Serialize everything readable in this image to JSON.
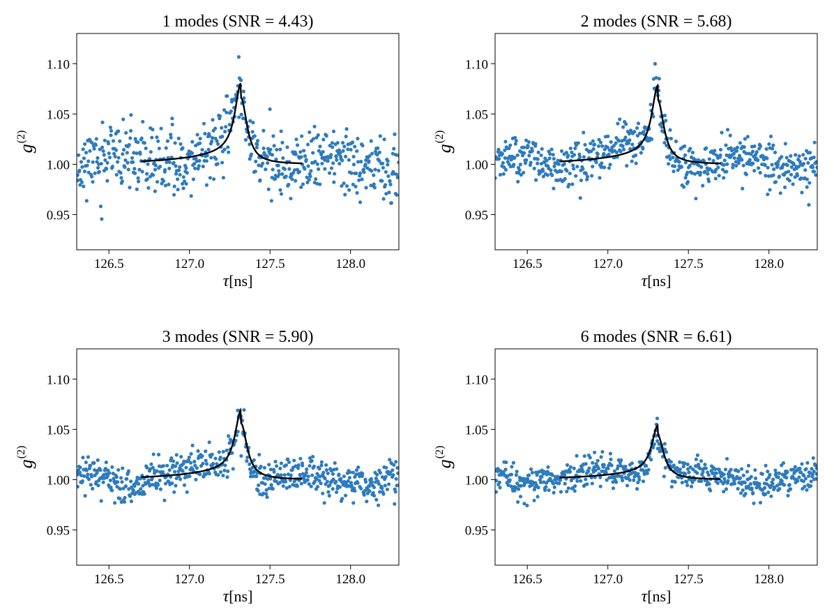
{
  "figure": {
    "point_color": "#2e7bbd",
    "fit_color": "#000000"
  },
  "chart_data": [
    {
      "type": "scatter",
      "title": "1 modes (SNR = 4.43)",
      "xlabel_symbol": "τ",
      "xlabel_unit": "[ns]",
      "ylabel_base": "g",
      "ylabel_sup": "(2)",
      "xlim": [
        126.3,
        128.3
      ],
      "ylim": [
        0.915,
        1.13
      ],
      "xticks": [
        126.5,
        127.0,
        127.5,
        128.0
      ],
      "xtick_labels": [
        "126.5",
        "127.0",
        "127.5",
        "128.0"
      ],
      "yticks": [
        0.95,
        1.0,
        1.05,
        1.1
      ],
      "ytick_labels": [
        "0.95",
        "1.00",
        "1.05",
        "1.10"
      ],
      "peak": {
        "center": 127.32,
        "height": 0.066,
        "width": 0.045,
        "tail_amp": 0.015,
        "tail_decay": 0.35
      },
      "scatter": {
        "n_points": 600,
        "noise_sd": 0.016,
        "seed": 11
      },
      "fit_range": [
        126.7,
        127.7
      ]
    },
    {
      "type": "scatter",
      "title": "2 modes (SNR = 5.68)",
      "xlabel_symbol": "τ",
      "xlabel_unit": "[ns]",
      "ylabel_base": "g",
      "ylabel_sup": "(2)",
      "xlim": [
        126.3,
        128.3
      ],
      "ylim": [
        0.915,
        1.13
      ],
      "xticks": [
        126.5,
        127.0,
        127.5,
        128.0
      ],
      "xtick_labels": [
        "126.5",
        "127.0",
        "127.5",
        "128.0"
      ],
      "yticks": [
        0.95,
        1.0,
        1.05,
        1.1
      ],
      "ytick_labels": [
        "0.95",
        "1.00",
        "1.05",
        "1.10"
      ],
      "peak": {
        "center": 127.31,
        "height": 0.064,
        "width": 0.045,
        "tail_amp": 0.014,
        "tail_decay": 0.35
      },
      "scatter": {
        "n_points": 600,
        "noise_sd": 0.011,
        "seed": 23
      },
      "fit_range": [
        126.7,
        127.7
      ]
    },
    {
      "type": "scatter",
      "title": "3 modes (SNR = 5.90)",
      "xlabel_symbol": "τ",
      "xlabel_unit": "[ns]",
      "ylabel_base": "g",
      "ylabel_sup": "(2)",
      "xlim": [
        126.3,
        128.3
      ],
      "ylim": [
        0.915,
        1.13
      ],
      "xticks": [
        126.5,
        127.0,
        127.5,
        128.0
      ],
      "xtick_labels": [
        "126.5",
        "127.0",
        "127.5",
        "128.0"
      ],
      "yticks": [
        0.95,
        1.0,
        1.05,
        1.1
      ],
      "ytick_labels": [
        "0.95",
        "1.00",
        "1.05",
        "1.10"
      ],
      "peak": {
        "center": 127.32,
        "height": 0.056,
        "width": 0.045,
        "tail_amp": 0.013,
        "tail_decay": 0.35
      },
      "scatter": {
        "n_points": 600,
        "noise_sd": 0.009,
        "seed": 37
      },
      "fit_range": [
        126.7,
        127.7
      ]
    },
    {
      "type": "scatter",
      "title": "6 modes (SNR = 6.61)",
      "xlabel_symbol": "τ",
      "xlabel_unit": "[ns]",
      "ylabel_base": "g",
      "ylabel_sup": "(2)",
      "xlim": [
        126.3,
        128.3
      ],
      "ylim": [
        0.915,
        1.13
      ],
      "xticks": [
        126.5,
        127.0,
        127.5,
        128.0
      ],
      "xtick_labels": [
        "126.5",
        "127.0",
        "127.5",
        "128.0"
      ],
      "yticks": [
        0.95,
        1.0,
        1.05,
        1.1
      ],
      "ytick_labels": [
        "0.95",
        "1.00",
        "1.05",
        "1.10"
      ],
      "peak": {
        "center": 127.31,
        "height": 0.044,
        "width": 0.045,
        "tail_amp": 0.01,
        "tail_decay": 0.35
      },
      "scatter": {
        "n_points": 600,
        "noise_sd": 0.0075,
        "seed": 53
      },
      "fit_range": [
        126.7,
        127.7
      ]
    }
  ]
}
